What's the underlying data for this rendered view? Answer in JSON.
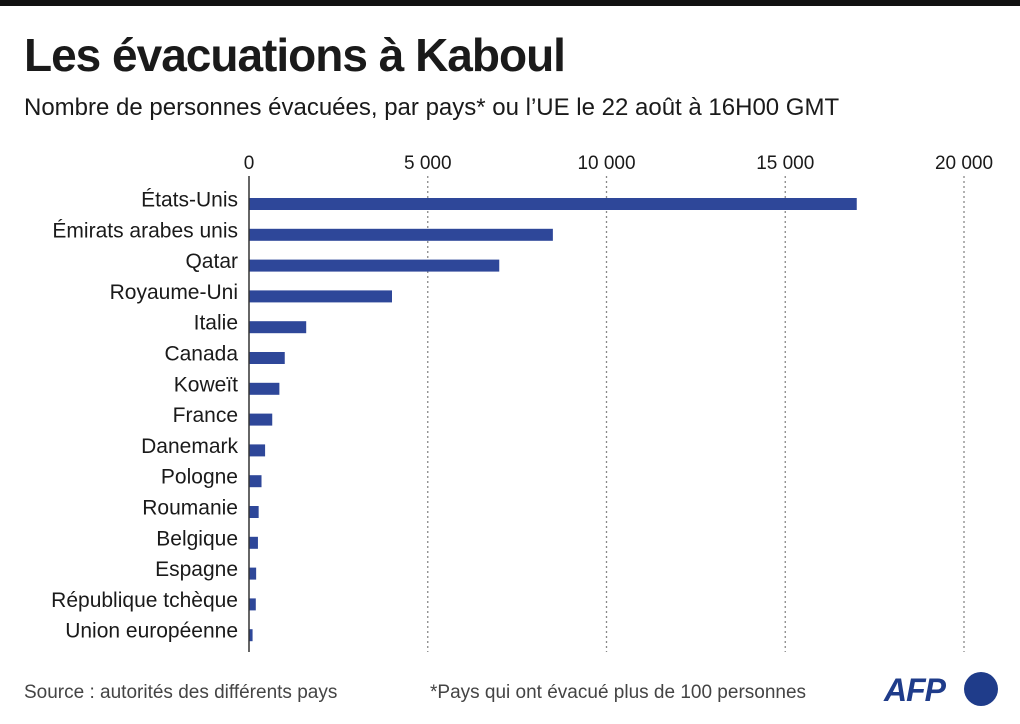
{
  "header": {
    "title": "Les évacuations à Kaboul",
    "subtitle": "Nombre de personnes évacuées, par pays* ou l’UE le 22 août à 16H00 GMT"
  },
  "footer": {
    "source": "Source : autorités des différents pays",
    "note": "*Pays qui ont évacué plus de 100 personnes",
    "logo": "AFP"
  },
  "colors": {
    "bar": "#2e4799",
    "grid": "#888888",
    "axis": "#333333"
  },
  "chart_data": {
    "type": "bar",
    "orientation": "horizontal",
    "categories": [
      "États-Unis",
      "Émirats arabes unis",
      "Qatar",
      "Royaume-Uni",
      "Italie",
      "Canada",
      "Koweït",
      "France",
      "Danemark",
      "Pologne",
      "Roumanie",
      "Belgique",
      "Espagne",
      "République tchèque",
      "Union européenne"
    ],
    "values": [
      17000,
      8500,
      7000,
      4000,
      1600,
      1000,
      850,
      650,
      450,
      350,
      270,
      250,
      200,
      190,
      100
    ],
    "xlim": [
      0,
      20000
    ],
    "xticks": [
      0,
      5000,
      10000,
      15000,
      20000
    ],
    "xtick_labels": [
      "0",
      "5 000",
      "10 000",
      "15 000",
      "20 000"
    ],
    "grid": "vertical dotted",
    "axis_position": "top"
  }
}
